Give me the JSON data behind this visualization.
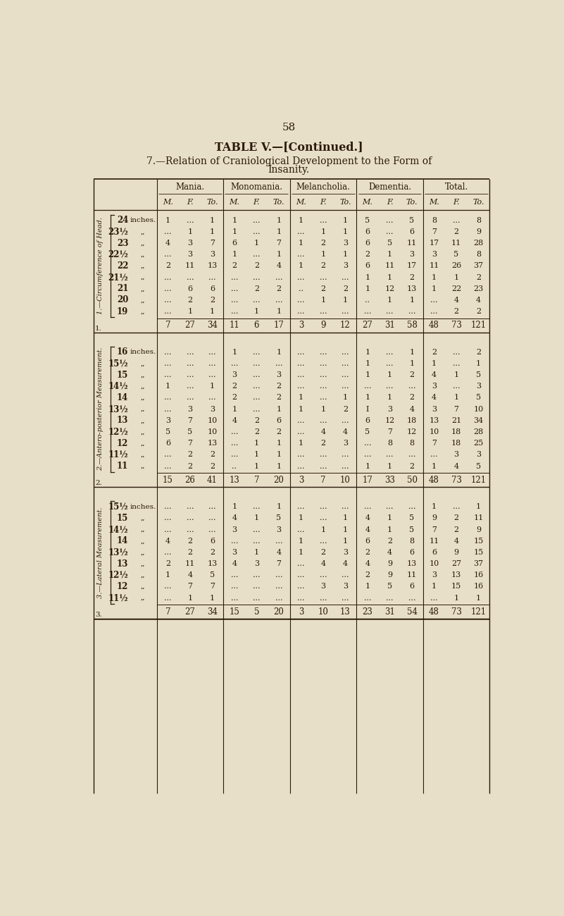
{
  "page_number": "58",
  "title_line1": "TABLE V.—[Continued.]",
  "title_line2": "7.—Relation of Craniological Development to the Form of",
  "title_line3": "Insanity.",
  "bg_color": "#e8dfc8",
  "text_color": "#2a1a0a",
  "section1_label": "1.—Circumference of Head.",
  "section2_label": "2.—Antero-posterior Measurement.",
  "section3_label": "3.—Lateral Measurement.",
  "col_groups": [
    "Mania.",
    "Monomania.",
    "Melancholia.",
    "Dementia.",
    "Total."
  ],
  "col_sub": [
    "M.",
    "F.",
    "To."
  ],
  "section1_rows": [
    {
      "label_num": "24",
      "label_sfx": "inches.",
      "mania": [
        "1",
        "...",
        "1"
      ],
      "mono": [
        "1",
        "...",
        "1"
      ],
      "melan": [
        "1",
        "...",
        "1"
      ],
      "dement": [
        "5",
        "...",
        "5"
      ],
      "total": [
        "8",
        "...",
        "8"
      ]
    },
    {
      "label_num": "23½",
      "label_sfx": ",,",
      "mania": [
        "...",
        "1",
        "1"
      ],
      "mono": [
        "1",
        "...",
        "1"
      ],
      "melan": [
        "...",
        "1",
        "1"
      ],
      "dement": [
        "6",
        "...",
        "6"
      ],
      "total": [
        "7",
        "2",
        "9"
      ]
    },
    {
      "label_num": "23",
      "label_sfx": ",,",
      "mania": [
        "4",
        "3",
        "7"
      ],
      "mono": [
        "6",
        "1",
        "7"
      ],
      "melan": [
        "1",
        "2",
        "3"
      ],
      "dement": [
        "6",
        "5",
        "11"
      ],
      "total": [
        "17",
        "11",
        "28"
      ]
    },
    {
      "label_num": "22½",
      "label_sfx": ",,",
      "mania": [
        "...",
        "3",
        "3"
      ],
      "mono": [
        "1",
        "...",
        "1"
      ],
      "melan": [
        "...",
        "1",
        "1"
      ],
      "dement": [
        "2",
        "1",
        "3"
      ],
      "total": [
        "3",
        "5",
        "8"
      ]
    },
    {
      "label_num": "22",
      "label_sfx": ",,",
      "mania": [
        "2",
        "11",
        "13"
      ],
      "mono": [
        "2",
        "2",
        "4"
      ],
      "melan": [
        "1",
        "2",
        "3"
      ],
      "dement": [
        "6",
        "11",
        "17"
      ],
      "total": [
        "11",
        "26",
        "37"
      ]
    },
    {
      "label_num": "21½",
      "label_sfx": ",,",
      "mania": [
        "...",
        "...",
        "..."
      ],
      "mono": [
        "...",
        "...",
        "..."
      ],
      "melan": [
        "...",
        "...",
        "..."
      ],
      "dement": [
        "1",
        "1",
        "2"
      ],
      "total": [
        "1",
        "1",
        "2"
      ]
    },
    {
      "label_num": "21",
      "label_sfx": ",,",
      "mania": [
        "...",
        "6",
        "6"
      ],
      "mono": [
        "...",
        "2",
        "2"
      ],
      "melan": [
        "..",
        "2",
        "2"
      ],
      "dement": [
        "1",
        "12",
        "13"
      ],
      "total": [
        "1",
        "22",
        "23"
      ]
    },
    {
      "label_num": "20",
      "label_sfx": ",,",
      "mania": [
        "...",
        "2",
        "2"
      ],
      "mono": [
        "...",
        "...",
        "..."
      ],
      "melan": [
        "...",
        "1",
        "1"
      ],
      "dement": [
        "..",
        "1",
        "1"
      ],
      "total": [
        "...",
        "4",
        "4"
      ]
    },
    {
      "label_num": "19",
      "label_sfx": ",,",
      "mania": [
        "...",
        "1",
        "1"
      ],
      "mono": [
        "...",
        "1",
        "1"
      ],
      "melan": [
        "...",
        "...",
        "..."
      ],
      "dement": [
        "...",
        "...",
        "..."
      ],
      "total": [
        "...",
        "2",
        "2"
      ]
    }
  ],
  "section1_totals": [
    "7",
    "27",
    "34",
    "11",
    "6",
    "17",
    "3",
    "9",
    "12",
    "27",
    "31",
    "58",
    "48",
    "73",
    "121"
  ],
  "section2_rows": [
    {
      "label_num": "16",
      "label_sfx": "inches.",
      "mania": [
        "...",
        "...",
        "..."
      ],
      "mono": [
        "1",
        "...",
        "1"
      ],
      "melan": [
        "...",
        "...",
        "..."
      ],
      "dement": [
        "1",
        "...",
        "1"
      ],
      "total": [
        "2",
        "...",
        "2"
      ]
    },
    {
      "label_num": "15½",
      "label_sfx": ",,",
      "mania": [
        "...",
        "...",
        "..."
      ],
      "mono": [
        "...",
        "...",
        "..."
      ],
      "melan": [
        "...",
        "...",
        "..."
      ],
      "dement": [
        "1",
        "...",
        "1"
      ],
      "total": [
        "1",
        "...",
        "1"
      ]
    },
    {
      "label_num": "15",
      "label_sfx": ",,",
      "mania": [
        "...",
        "...",
        "..."
      ],
      "mono": [
        "3",
        "...",
        "3"
      ],
      "melan": [
        "...",
        "...",
        "..."
      ],
      "dement": [
        "1",
        "1",
        "2"
      ],
      "total": [
        "4",
        "1",
        "5"
      ]
    },
    {
      "label_num": "14½",
      "label_sfx": ",,",
      "mania": [
        "1",
        "...",
        "1"
      ],
      "mono": [
        "2",
        "...",
        "2"
      ],
      "melan": [
        "...",
        "...",
        "..."
      ],
      "dement": [
        "...",
        "...",
        "..."
      ],
      "total": [
        "3",
        "...",
        "3"
      ]
    },
    {
      "label_num": "14",
      "label_sfx": ",,",
      "mania": [
        "...",
        "...",
        "..."
      ],
      "mono": [
        "2",
        "...",
        "2"
      ],
      "melan": [
        "1",
        "...",
        "1"
      ],
      "dement": [
        "1",
        "1",
        "2"
      ],
      "total": [
        "4",
        "1",
        "5"
      ]
    },
    {
      "label_num": "13½",
      "label_sfx": ",,",
      "mania": [
        "...",
        "3",
        "3"
      ],
      "mono": [
        "1",
        "...",
        "1"
      ],
      "melan": [
        "1",
        "1",
        "2"
      ],
      "dement": [
        "I",
        "3",
        "4"
      ],
      "total": [
        "3",
        "7",
        "10"
      ]
    },
    {
      "label_num": "13",
      "label_sfx": ",,",
      "mania": [
        "3",
        "7",
        "10"
      ],
      "mono": [
        "4",
        "2",
        "6"
      ],
      "melan": [
        "...",
        "...",
        "..."
      ],
      "dement": [
        "6",
        "12",
        "18"
      ],
      "total": [
        "13",
        "21",
        "34"
      ]
    },
    {
      "label_num": "12½",
      "label_sfx": ",,",
      "mania": [
        "5",
        "5",
        "10"
      ],
      "mono": [
        "...",
        "2",
        "2"
      ],
      "melan": [
        "...",
        "4",
        "4"
      ],
      "dement": [
        "5",
        "7",
        "12"
      ],
      "total": [
        "10",
        "18",
        "28"
      ]
    },
    {
      "label_num": "12",
      "label_sfx": ",,",
      "mania": [
        "6",
        "7",
        "13"
      ],
      "mono": [
        "...",
        "1",
        "1"
      ],
      "melan": [
        "1",
        "2",
        "3"
      ],
      "dement": [
        "...",
        "8",
        "8"
      ],
      "total": [
        "7",
        "18",
        "25"
      ]
    },
    {
      "label_num": "11½",
      "label_sfx": ",,",
      "mania": [
        "...",
        "2",
        "2"
      ],
      "mono": [
        "...",
        "1",
        "1"
      ],
      "melan": [
        "...",
        "...",
        "..."
      ],
      "dement": [
        "...",
        "...",
        "..."
      ],
      "total": [
        "...",
        "3",
        "3"
      ]
    },
    {
      "label_num": "11",
      "label_sfx": ",,",
      "mania": [
        "...",
        "2",
        "2"
      ],
      "mono": [
        "..",
        "1",
        "1"
      ],
      "melan": [
        "...",
        "...",
        "..."
      ],
      "dement": [
        "1",
        "1",
        "2"
      ],
      "total": [
        "1",
        "4",
        "5"
      ]
    }
  ],
  "section2_totals": [
    "15",
    "26",
    "41",
    "13",
    "7",
    "20",
    "3",
    "7",
    "10",
    "17",
    "33",
    "50",
    "48",
    "73",
    "121"
  ],
  "section3_rows": [
    {
      "label_num": "15½",
      "label_sfx": "inches.",
      "mania": [
        "...",
        "...",
        "..."
      ],
      "mono": [
        "1",
        "...",
        "1"
      ],
      "melan": [
        "...",
        "...",
        "..."
      ],
      "dement": [
        "...",
        "...",
        "..."
      ],
      "total": [
        "1",
        "...",
        "1"
      ]
    },
    {
      "label_num": "15",
      "label_sfx": ",,",
      "mania": [
        "...",
        "...",
        "..."
      ],
      "mono": [
        "4",
        "1",
        "5"
      ],
      "melan": [
        "1",
        "...",
        "1"
      ],
      "dement": [
        "4",
        "1",
        "5"
      ],
      "total": [
        "9",
        "2",
        "11"
      ]
    },
    {
      "label_num": "14½",
      "label_sfx": ",,",
      "mania": [
        "...",
        "...",
        "..."
      ],
      "mono": [
        "3",
        "...",
        "3"
      ],
      "melan": [
        "...",
        "1",
        "1"
      ],
      "dement": [
        "4",
        "1",
        "5"
      ],
      "total": [
        "7",
        "2",
        "9"
      ]
    },
    {
      "label_num": "14",
      "label_sfx": ",,",
      "mania": [
        "4",
        "2",
        "6"
      ],
      "mono": [
        "...",
        "...",
        "..."
      ],
      "melan": [
        "1",
        "...",
        "1"
      ],
      "dement": [
        "6",
        "2",
        "8"
      ],
      "total": [
        "11",
        "4",
        "15"
      ]
    },
    {
      "label_num": "13½",
      "label_sfx": ",,",
      "mania": [
        "...",
        "2",
        "2"
      ],
      "mono": [
        "3",
        "1",
        "4"
      ],
      "melan": [
        "1",
        "2",
        "3"
      ],
      "dement": [
        "2",
        "4",
        "6"
      ],
      "total": [
        "6",
        "9",
        "15"
      ]
    },
    {
      "label_num": "13",
      "label_sfx": ",,",
      "mania": [
        "2",
        "11",
        "13"
      ],
      "mono": [
        "4",
        "3",
        "7"
      ],
      "melan": [
        "...",
        "4",
        "4"
      ],
      "dement": [
        "4",
        "9",
        "13"
      ],
      "total": [
        "10",
        "27",
        "37"
      ]
    },
    {
      "label_num": "12½",
      "label_sfx": ",,",
      "mania": [
        "1",
        "4",
        "5"
      ],
      "mono": [
        "...",
        "...",
        "..."
      ],
      "melan": [
        "...",
        "...",
        "..."
      ],
      "dement": [
        "2",
        "9",
        "11"
      ],
      "total": [
        "3",
        "13",
        "16"
      ]
    },
    {
      "label_num": "12",
      "label_sfx": ",,",
      "mania": [
        "...",
        "7",
        "7"
      ],
      "mono": [
        "...",
        "...",
        "..."
      ],
      "melan": [
        "...",
        "3",
        "3"
      ],
      "dement": [
        "1",
        "5",
        "6"
      ],
      "total": [
        "1",
        "15",
        "16"
      ]
    },
    {
      "label_num": "11½",
      "label_sfx": ",,",
      "mania": [
        "...",
        "1",
        "1"
      ],
      "mono": [
        "...",
        "...",
        "..."
      ],
      "melan": [
        "...",
        "...",
        "..."
      ],
      "dement": [
        "...",
        "...",
        "..."
      ],
      "total": [
        "...",
        "1",
        "1"
      ]
    }
  ],
  "section3_totals": [
    "7",
    "27",
    "34",
    "15",
    "5",
    "20",
    "3",
    "10",
    "13",
    "23",
    "31",
    "54",
    "48",
    "73",
    "121"
  ]
}
